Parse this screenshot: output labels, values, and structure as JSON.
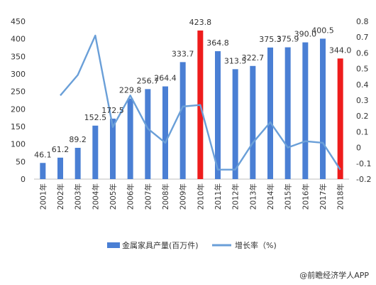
{
  "chart_data": {
    "type": "bar",
    "categories": [
      "2001年",
      "2002年",
      "2003年",
      "2004年",
      "2005年",
      "2006年",
      "2007年",
      "2008年",
      "2009年",
      "2010年",
      "2011年",
      "2012年",
      "2013年",
      "2014年",
      "2015年",
      "2016年",
      "2017年",
      "2018年"
    ],
    "series": [
      {
        "name": "金属家具产量(百万件)",
        "type": "bar",
        "axis": "left",
        "values": [
          46.1,
          61.2,
          89.2,
          152.5,
          172.5,
          229.8,
          256.7,
          264.4,
          333.7,
          423.8,
          364.8,
          313.5,
          322.7,
          375.3,
          375.9,
          390.0,
          400.5,
          344.0
        ],
        "labels": [
          "46.1",
          "61.2",
          "89.2",
          "152.5",
          "172.5",
          "229.8",
          "256.7",
          "264.4",
          "333.7",
          "423.8",
          "364.8",
          "313.5",
          "322.7",
          "375.3",
          "375.9",
          "390.0",
          "400.5",
          "344.0"
        ],
        "highlighted": [
          "2010年",
          "2018年"
        ]
      },
      {
        "name": "增长率（%)",
        "type": "line",
        "axis": "right",
        "values": [
          null,
          0.33,
          0.46,
          0.71,
          0.13,
          0.33,
          0.12,
          0.03,
          0.26,
          0.27,
          -0.14,
          -0.14,
          0.03,
          0.16,
          0.0,
          0.04,
          0.03,
          -0.14
        ]
      }
    ],
    "y_left": {
      "ylim": [
        0,
        450
      ],
      "ticks": [
        "0",
        "50",
        "100",
        "150",
        "200",
        "250",
        "300",
        "350",
        "400",
        "450"
      ]
    },
    "y_right": {
      "ylim": [
        -0.2,
        0.8
      ],
      "ticks": [
        "-0.2",
        "-0.1",
        "0",
        "0.1",
        "0.2",
        "0.3",
        "0.4",
        "0.5",
        "0.6",
        "0.7",
        "0.8"
      ]
    },
    "colors": {
      "bar": "#4a7fd4",
      "bar_highlight": "#ee1c1c",
      "line": "#6a9fd8",
      "axis": "#bfbfbf"
    },
    "legend": {
      "placement": "bottom"
    }
  },
  "footer": {
    "source": "@前瞻经济学人APP"
  }
}
